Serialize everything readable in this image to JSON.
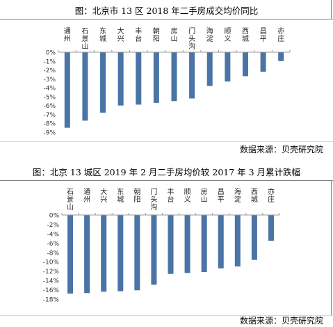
{
  "chart_data": [
    {
      "type": "bar",
      "title": "图：北京市 13 区 2018 年二手房成交均价同比",
      "categories": [
        "通州",
        "石景山",
        "东城",
        "大兴",
        "丰台",
        "朝阳",
        "房山",
        "门头沟",
        "海淀",
        "顺义",
        "西城",
        "昌平",
        "亦庄"
      ],
      "values": [
        -8.5,
        -7.7,
        -6.8,
        -6.0,
        -5.9,
        -5.7,
        -5.5,
        -5.2,
        -3.8,
        -3.3,
        -2.7,
        -2.2,
        -1.0
      ],
      "y_ticks": [
        "0%",
        "-1%",
        "-2%",
        "-3%",
        "-4%",
        "-5%",
        "-6%",
        "-7%",
        "-8%",
        "-9%"
      ],
      "ylim": [
        -9,
        0
      ],
      "xlabel": "",
      "ylabel": "",
      "grid": false,
      "bar_color": "#4a74a6",
      "source": "数据来源：贝壳研究院"
    },
    {
      "type": "bar",
      "title": "图：北京 13 城区 2019 年 2 月二手房均价较 2017 年 3 月累计跌幅",
      "categories": [
        "石景山",
        "通州",
        "大兴",
        "东城",
        "朝阳",
        "门头沟",
        "丰台",
        "顺义",
        "房山",
        "昌平",
        "海淀",
        "西城",
        "亦庄"
      ],
      "values": [
        -16.8,
        -16.7,
        -16.4,
        -16.3,
        -16.1,
        -14.9,
        -12.6,
        -12.4,
        -12.2,
        -11.4,
        -11.0,
        -9.6,
        -5.5
      ],
      "y_ticks": [
        "0%",
        "-2%",
        "-4%",
        "-6%",
        "-8%",
        "-10%",
        "-12%",
        "-14%",
        "-16%",
        "-18%"
      ],
      "ylim": [
        -18,
        0
      ],
      "xlabel": "",
      "ylabel": "",
      "grid": false,
      "bar_color": "#4a74a6",
      "source": "数据来源：贝壳研究院"
    }
  ]
}
